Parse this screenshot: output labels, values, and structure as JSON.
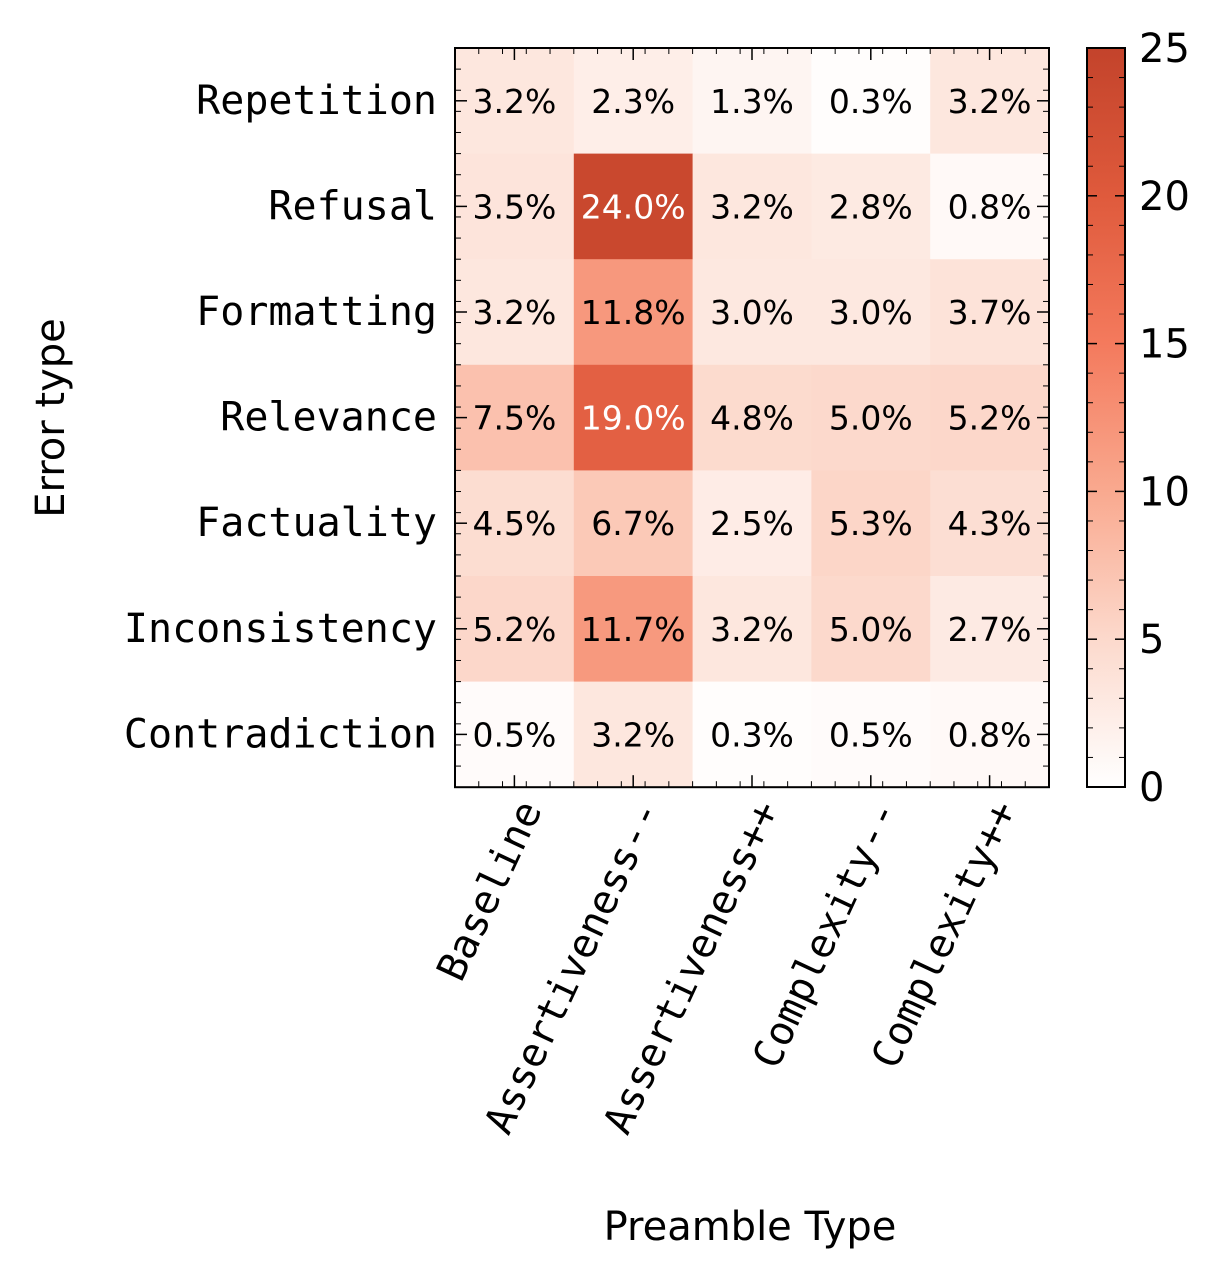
{
  "chart_data": {
    "type": "heatmap",
    "xlabel": "Preamble Type",
    "ylabel": "Error type",
    "x_categories": [
      "Baseline",
      "Assertiveness--",
      "Assertiveness++",
      "Complexity--",
      "Complexity++"
    ],
    "y_categories": [
      "Repetition",
      "Refusal",
      "Formatting",
      "Relevance",
      "Factuality",
      "Inconsistency",
      "Contradiction"
    ],
    "values": [
      [
        3.2,
        2.3,
        1.3,
        0.3,
        3.2
      ],
      [
        3.5,
        24.0,
        3.2,
        2.8,
        0.8
      ],
      [
        3.2,
        11.8,
        3.0,
        3.0,
        3.7
      ],
      [
        7.5,
        19.0,
        4.8,
        5.0,
        5.2
      ],
      [
        4.5,
        6.7,
        2.5,
        5.3,
        4.3
      ],
      [
        5.2,
        11.7,
        3.2,
        5.0,
        2.7
      ],
      [
        0.5,
        3.2,
        0.3,
        0.5,
        0.8
      ]
    ],
    "cell_labels": [
      [
        "3.2%",
        "2.3%",
        "1.3%",
        "0.3%",
        "3.2%"
      ],
      [
        "3.5%",
        "24.0%",
        "3.2%",
        "2.8%",
        "0.8%"
      ],
      [
        "3.2%",
        "11.8%",
        "3.0%",
        "3.0%",
        "3.7%"
      ],
      [
        "7.5%",
        "19.0%",
        "4.8%",
        "5.0%",
        "5.2%"
      ],
      [
        "4.5%",
        "6.7%",
        "2.5%",
        "5.3%",
        "4.3%"
      ],
      [
        "5.2%",
        "11.7%",
        "3.2%",
        "5.0%",
        "2.7%"
      ],
      [
        "0.5%",
        "3.2%",
        "0.3%",
        "0.5%",
        "0.8%"
      ]
    ],
    "colorbar": {
      "min": 0,
      "max": 25,
      "ticks": [
        0,
        5,
        10,
        15,
        20,
        25
      ],
      "tick_labels": [
        "0",
        "5",
        "10",
        "15",
        "20",
        "25"
      ],
      "colors": [
        "#ffffff",
        "#fcd9cc",
        "#f9a98f",
        "#f47a5d",
        "#df5a3c",
        "#c3432b"
      ]
    },
    "grid": false,
    "legend": "colorbar-right"
  }
}
